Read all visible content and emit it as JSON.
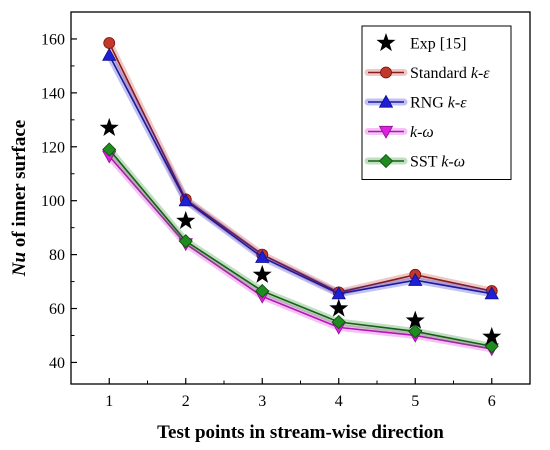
{
  "chart_data": {
    "type": "line",
    "xlabel": "Test points in stream-wise direction",
    "ylabel": {
      "parts": [
        {
          "text": "Nu",
          "italic": true
        },
        {
          "text": " of inner surface",
          "italic": false
        }
      ]
    },
    "x": [
      1,
      2,
      3,
      4,
      5,
      6
    ],
    "xlim": [
      0.5,
      6.5
    ],
    "ylim": [
      32,
      170
    ],
    "xticks": [
      1,
      2,
      3,
      4,
      5,
      6
    ],
    "yticks": [
      40,
      60,
      80,
      100,
      120,
      140,
      160
    ],
    "grid": false,
    "legend_position": "top-right",
    "series": [
      {
        "key": "exp",
        "label_parts": [
          {
            "text": "Exp [15]",
            "italic": false
          }
        ],
        "values": [
          127,
          92.5,
          72.5,
          60,
          55.5,
          49.5
        ],
        "color": "#000000",
        "marker": "star",
        "line": false
      },
      {
        "key": "standard-k-epsilon",
        "label_parts": [
          {
            "text": "Standard ",
            "italic": false
          },
          {
            "text": "k-ε",
            "italic": true
          }
        ],
        "values": [
          158.5,
          100.5,
          80,
          66,
          72.5,
          66.5
        ],
        "color": "#c0392b",
        "line_color": "#8b1a1a",
        "marker": "circle",
        "line": true
      },
      {
        "key": "rng-k-epsilon",
        "label_parts": [
          {
            "text": "RNG ",
            "italic": false
          },
          {
            "text": "k-ε",
            "italic": true
          }
        ],
        "values": [
          154,
          100,
          79,
          65.5,
          70.5,
          65.5
        ],
        "color": "#1f1fd6",
        "line_color": "#1a1a9e",
        "marker": "triangle-up",
        "line": true
      },
      {
        "key": "k-omega",
        "label_parts": [
          {
            "text": "k-ω",
            "italic": true
          }
        ],
        "values": [
          116.5,
          84,
          64.5,
          53,
          50,
          45
        ],
        "color": "#e020e0",
        "line_color": "#b515b5",
        "marker": "triangle-down",
        "line": true
      },
      {
        "key": "sst-k-omega",
        "label_parts": [
          {
            "text": "SST ",
            "italic": false
          },
          {
            "text": "k-ω",
            "italic": true
          }
        ],
        "values": [
          119,
          85,
          66.5,
          55,
          51.5,
          46
        ],
        "color": "#1e8c1e",
        "line_color": "#146014",
        "marker": "diamond",
        "line": true
      }
    ]
  }
}
